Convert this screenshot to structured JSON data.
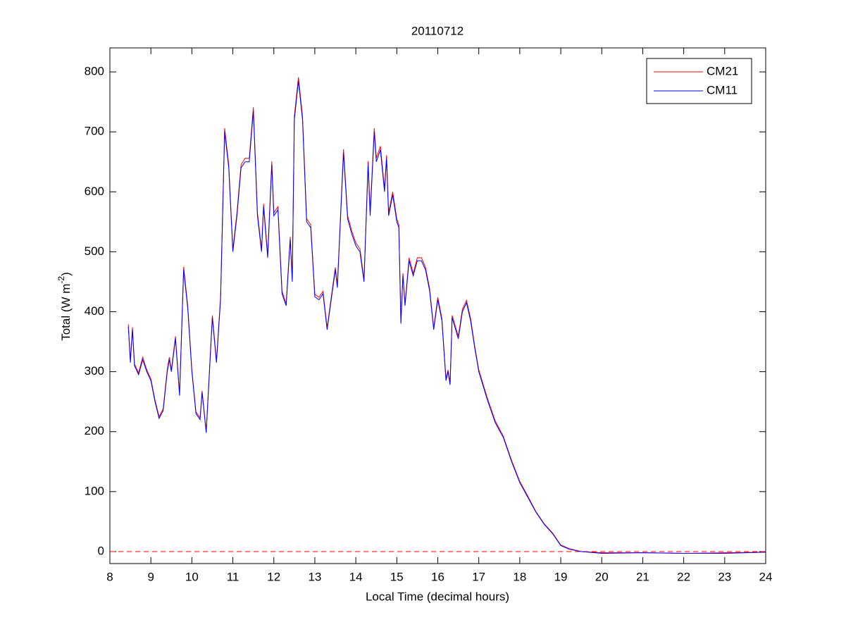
{
  "chart_data": {
    "type": "line",
    "title": "20110712",
    "x_label": "Local Time (decimal hours)",
    "y_label": {
      "text": "Total (W m",
      "superscript": "-2",
      "suffix": ")"
    },
    "x": [
      8.45,
      8.5,
      8.55,
      8.6,
      8.7,
      8.8,
      8.9,
      9.0,
      9.1,
      9.2,
      9.3,
      9.4,
      9.45,
      9.5,
      9.6,
      9.7,
      9.8,
      9.9,
      10.0,
      10.1,
      10.2,
      10.25,
      10.35,
      10.5,
      10.6,
      10.7,
      10.8,
      10.9,
      11.0,
      11.1,
      11.2,
      11.3,
      11.4,
      11.5,
      11.6,
      11.7,
      11.75,
      11.85,
      11.95,
      12.0,
      12.1,
      12.2,
      12.3,
      12.4,
      12.45,
      12.5,
      12.6,
      12.7,
      12.8,
      12.9,
      13.0,
      13.1,
      13.2,
      13.3,
      13.4,
      13.5,
      13.55,
      13.7,
      13.8,
      13.9,
      14.0,
      14.1,
      14.2,
      14.3,
      14.35,
      14.45,
      14.5,
      14.6,
      14.7,
      14.75,
      14.8,
      14.9,
      15.0,
      15.05,
      15.1,
      15.15,
      15.2,
      15.3,
      15.4,
      15.5,
      15.6,
      15.7,
      15.8,
      15.9,
      16.0,
      16.1,
      16.2,
      16.25,
      16.3,
      16.35,
      16.5,
      16.6,
      16.7,
      16.8,
      16.9,
      17.0,
      17.2,
      17.4,
      17.6,
      17.8,
      18.0,
      18.2,
      18.4,
      18.6,
      18.8,
      19.0,
      19.2,
      19.5,
      20.0,
      21.0,
      22.0,
      23.0,
      24.0
    ],
    "series": [
      {
        "name": "CM21",
        "color": "#ff0000",
        "values": [
          379,
          318,
          374,
          313,
          298,
          324,
          303,
          288,
          253,
          225,
          238,
          304,
          324,
          303,
          359,
          263,
          475,
          409,
          303,
          233,
          223,
          268,
          200,
          394,
          318,
          424,
          706,
          645,
          504,
          565,
          645,
          656,
          656,
          741,
          565,
          504,
          580,
          494,
          651,
          565,
          575,
          434,
          413,
          525,
          454,
          726,
          791,
          726,
          555,
          545,
          429,
          424,
          434,
          373,
          424,
          474,
          444,
          671,
          560,
          535,
          515,
          505,
          454,
          651,
          565,
          706,
          656,
          676,
          605,
          661,
          565,
          600,
          555,
          545,
          383,
          464,
          413,
          490,
          464,
          490,
          490,
          474,
          439,
          373,
          424,
          389,
          288,
          303,
          281,
          394,
          359,
          404,
          419,
          389,
          343,
          303,
          258,
          218,
          192,
          152,
          117,
          92,
          66,
          46,
          31,
          11,
          5,
          0,
          -2,
          -2,
          -3,
          -2,
          -1
        ]
      },
      {
        "name": "CM11",
        "color": "#0000ff",
        "values": [
          375,
          315,
          370,
          310,
          295,
          320,
          300,
          285,
          250,
          222,
          235,
          300,
          320,
          300,
          355,
          260,
          470,
          405,
          300,
          230,
          220,
          265,
          198,
          390,
          315,
          420,
          700,
          640,
          500,
          560,
          640,
          650,
          650,
          735,
          560,
          500,
          575,
          490,
          645,
          560,
          570,
          430,
          410,
          520,
          450,
          720,
          785,
          720,
          550,
          540,
          425,
          420,
          430,
          370,
          420,
          470,
          440,
          665,
          555,
          530,
          510,
          500,
          450,
          645,
          560,
          700,
          650,
          670,
          600,
          655,
          560,
          595,
          550,
          540,
          380,
          460,
          410,
          485,
          460,
          485,
          485,
          470,
          435,
          370,
          420,
          385,
          285,
          300,
          278,
          390,
          355,
          400,
          415,
          385,
          340,
          300,
          255,
          215,
          190,
          150,
          115,
          90,
          65,
          45,
          30,
          10,
          4,
          0,
          -3,
          -2,
          -3,
          -3,
          -1
        ]
      }
    ],
    "reference_line": {
      "value": 0,
      "color": "#ff0000",
      "style": "dashed"
    },
    "xlim": [
      8,
      24
    ],
    "xticks": [
      8,
      9,
      10,
      11,
      12,
      13,
      14,
      15,
      16,
      17,
      18,
      19,
      20,
      21,
      22,
      23,
      24
    ],
    "ylim": [
      -20,
      840
    ],
    "yticks": [
      0,
      100,
      200,
      300,
      400,
      500,
      600,
      700,
      800
    ],
    "legend": "top-right"
  }
}
